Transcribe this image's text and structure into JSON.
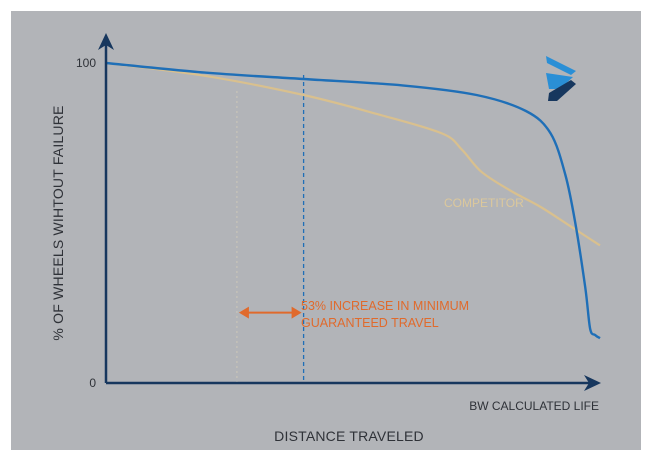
{
  "colors": {
    "background": "#b2b4b8",
    "axis": "#17375e",
    "bw_line": "#1f6fb7",
    "competitor_line": "#d9c08e",
    "annotation": "#e06a2c",
    "logo_light": "#2a8fd6",
    "logo_dark": "#17375e"
  },
  "logo": {
    "name": "brand-logo-icon"
  },
  "chart_data": {
    "type": "line",
    "title": "",
    "xlabel": "DISTANCE TRAVELED",
    "ylabel": "% OF WHEELS WIHTOUT FAILURE",
    "x_axis_end_label": "BW CALCULATED LIFE",
    "xlim": [
      0,
      100
    ],
    "ylim": [
      0,
      100
    ],
    "y_ticks": [
      {
        "value": 0,
        "label": "0"
      },
      {
        "value": 100,
        "label": "100"
      }
    ],
    "grid": false,
    "series": [
      {
        "label": "",
        "color": "#1f6fb7",
        "points": [
          [
            0,
            100
          ],
          [
            20,
            97
          ],
          [
            40,
            95
          ],
          [
            60,
            93
          ],
          [
            75,
            90
          ],
          [
            85,
            85
          ],
          [
            90,
            78
          ],
          [
            93,
            65
          ],
          [
            95,
            50
          ],
          [
            97,
            30
          ],
          [
            98,
            17
          ],
          [
            99,
            15
          ],
          [
            100,
            14
          ]
        ]
      },
      {
        "label": "COMPETITOR",
        "color": "#d9c08e",
        "points": [
          [
            0,
            100
          ],
          [
            20,
            96
          ],
          [
            40,
            90
          ],
          [
            55,
            84
          ],
          [
            68,
            78
          ],
          [
            72,
            73
          ],
          [
            76,
            66
          ],
          [
            82,
            60
          ],
          [
            88,
            55
          ],
          [
            94,
            49
          ],
          [
            98,
            45
          ],
          [
            100,
            43
          ]
        ]
      }
    ],
    "reference_lines": [
      {
        "x": 26.5,
        "style": "dotted",
        "color": "#c8c4b8"
      },
      {
        "x": 40,
        "style": "dashed",
        "color": "#1f6fb7"
      }
    ],
    "annotation": {
      "line1": "53% INCREASE IN MINIMUM",
      "line2": "GUARANTEED TRAVEL",
      "from_x": 26.5,
      "to_x": 40,
      "at_y": 22
    }
  }
}
